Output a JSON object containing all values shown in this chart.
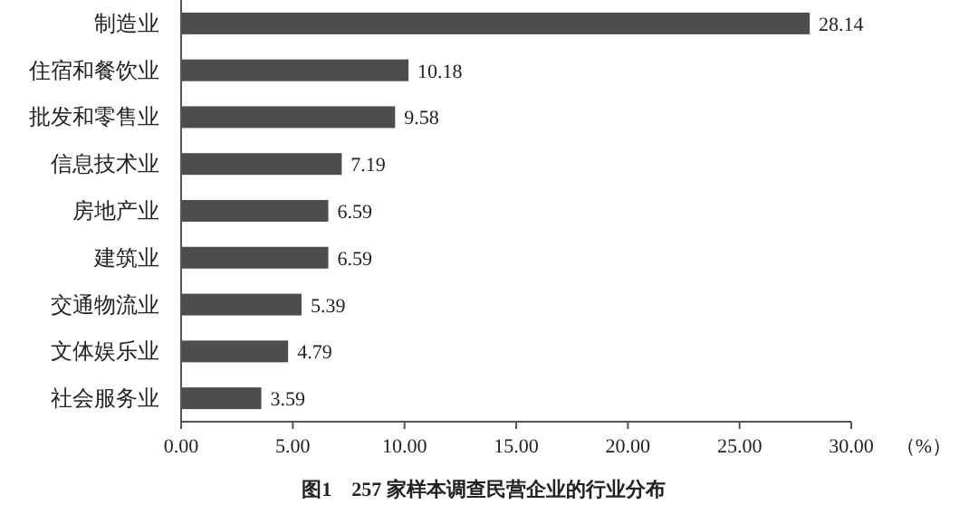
{
  "chart_data": {
    "type": "bar",
    "orientation": "horizontal",
    "title": "图1　257 家样本调查民营企业的行业分布",
    "xlabel": "（%）",
    "categories": [
      "制造业",
      "住宿和餐饮业",
      "批发和零售业",
      "信息技术业",
      "房地产业",
      "建筑业",
      "交通物流业",
      "文体娱乐业",
      "社会服务业"
    ],
    "values": [
      28.14,
      10.18,
      9.58,
      7.19,
      6.59,
      6.59,
      5.39,
      4.79,
      3.59
    ],
    "color": "#4d4d4d",
    "data_labels": true,
    "xlim": [
      0,
      30
    ],
    "xticks": [
      {
        "value": 0,
        "label": "0.00"
      },
      {
        "value": 5,
        "label": "5.00"
      },
      {
        "value": 10,
        "label": "10.00"
      },
      {
        "value": 15,
        "label": "15.00"
      },
      {
        "value": 20,
        "label": "20.00"
      },
      {
        "value": 25,
        "label": "25.00"
      },
      {
        "value": 30,
        "label": "30.00"
      }
    ]
  }
}
